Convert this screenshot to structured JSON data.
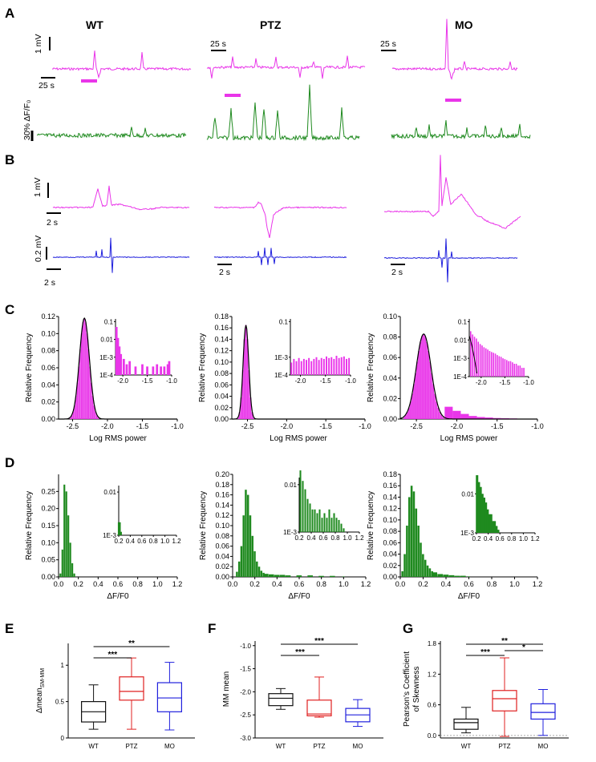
{
  "figure": {
    "panel_letters": [
      "A",
      "B",
      "C",
      "D",
      "E",
      "F",
      "G"
    ],
    "conditions": [
      "WT",
      "PTZ",
      "MO"
    ],
    "colors": {
      "ephys": "#e935e9",
      "calcium": "#1f8a1f",
      "filtered": "#2020dd",
      "wt_box": "#111111",
      "ptz_box": "#e02020",
      "mo_box": "#2020dd"
    },
    "panel_A": {
      "voltage_scale": "1 mV",
      "time_scale": "25 s",
      "calcium_scale": "30% ΔF/F₀"
    },
    "panel_B": {
      "voltage_scale": "1 mV",
      "time_scale": "2 s",
      "filtered_scale": "0.2 mV"
    }
  },
  "chart_data": [
    {
      "panel": "C",
      "condition": "WT",
      "type": "bar",
      "xlabel": "Log RMS power",
      "ylabel": "Relative Frequency",
      "xlim": [
        -2.7,
        -1.0
      ],
      "ylim": [
        0,
        0.12
      ],
      "xticks": [
        "-2.5",
        "-2.0",
        "-1.5",
        "-1.0"
      ],
      "yticks": [
        "0.00",
        "0.02",
        "0.04",
        "0.06",
        "0.08",
        "0.10",
        "0.12"
      ],
      "fit_peak": -2.33,
      "fit_sd": 0.07,
      "fit_height": 0.118,
      "tail": [],
      "inset": {
        "type": "bar",
        "scale": "log",
        "yticks": [
          "1E-4",
          "1E-3",
          "0.01",
          "0.1"
        ],
        "xticks": [
          "-2.0",
          "-1.5",
          "-1.0"
        ],
        "xlim": [
          -2.15,
          -1.0
        ],
        "x": [
          -2.13,
          -2.1,
          -2.07,
          -2.04,
          -1.98,
          -1.92,
          -1.86,
          -1.74,
          -1.6,
          -1.5,
          -1.38,
          -1.3,
          -1.22,
          -1.15,
          -1.08,
          -1.05
        ],
        "y": [
          0.05,
          0.012,
          0.004,
          0.0015,
          0.0008,
          0.0004,
          0.0006,
          0.0003,
          0.0004,
          0.0003,
          0.0003,
          0.0004,
          0.0003,
          0.0003,
          0.0004,
          0.0006
        ]
      }
    },
    {
      "panel": "C",
      "condition": "PTZ",
      "type": "bar",
      "xlabel": "Log RMS power",
      "ylabel": "Relative Frequency",
      "xlim": [
        -2.7,
        -1.0
      ],
      "ylim": [
        0,
        0.18
      ],
      "xticks": [
        "-2.5",
        "-2.0",
        "-1.5",
        "-1.0"
      ],
      "yticks": [
        "0.00",
        "0.02",
        "0.04",
        "0.06",
        "0.08",
        "0.10",
        "0.12",
        "0.14",
        "0.16",
        "0.18"
      ],
      "fit_peak": -2.52,
      "fit_sd": 0.035,
      "fit_height": 0.165,
      "tail": [],
      "inset": {
        "type": "bar",
        "scale": "log",
        "yticks": [
          "1E-4",
          "1E-3",
          "0.1"
        ],
        "xticks": [
          "-2.0",
          "-1.5",
          "-1.0"
        ],
        "xlim": [
          -2.2,
          -1.0
        ],
        "x": [
          -2.18,
          -2.13,
          -2.08,
          -2.03,
          -1.98,
          -1.93,
          -1.88,
          -1.83,
          -1.78,
          -1.73,
          -1.68,
          -1.63,
          -1.58,
          -1.53,
          -1.48,
          -1.43,
          -1.38,
          -1.33,
          -1.28,
          -1.23,
          -1.18,
          -1.13,
          -1.08,
          -1.03
        ],
        "y": [
          0.0005,
          0.0008,
          0.0006,
          0.0009,
          0.0006,
          0.0008,
          0.0007,
          0.0009,
          0.0006,
          0.0008,
          0.001,
          0.0007,
          0.0009,
          0.0008,
          0.0011,
          0.0009,
          0.001,
          0.0008,
          0.0012,
          0.0009,
          0.001,
          0.0011,
          0.0008,
          0.0009
        ]
      }
    },
    {
      "panel": "C",
      "condition": "MO",
      "type": "bar",
      "xlabel": "Log RMS power",
      "ylabel": "Relative Frequency",
      "xlim": [
        -2.7,
        -1.0
      ],
      "ylim": [
        0,
        0.1
      ],
      "xticks": [
        "-2.5",
        "-2.0",
        "-1.5",
        "-1.0"
      ],
      "yticks": [
        "0.00",
        "0.02",
        "0.04",
        "0.06",
        "0.08",
        "0.10"
      ],
      "fit_peak": -2.41,
      "fit_sd": 0.09,
      "fit_height": 0.083,
      "tail": [
        [
          -2.1,
          0.012
        ],
        [
          -2.0,
          0.008
        ],
        [
          -1.9,
          0.005
        ],
        [
          -1.8,
          0.003
        ],
        [
          -1.7,
          0.002
        ],
        [
          -1.6,
          0.0015
        ],
        [
          -1.5,
          0.001
        ],
        [
          -1.4,
          0.0008
        ],
        [
          -1.3,
          0.0006
        ]
      ],
      "inset": {
        "type": "bar",
        "scale": "log",
        "yticks": [
          "1E-4",
          "1E-3",
          "0.01",
          "0.1"
        ],
        "xticks": [
          "-2.0",
          "-1.5",
          "-1.0"
        ],
        "xlim": [
          -2.25,
          -1.0
        ],
        "x": [
          -2.22,
          -2.18,
          -2.14,
          -2.1,
          -2.06,
          -2.02,
          -1.98,
          -1.94,
          -1.9,
          -1.86,
          -1.82,
          -1.78,
          -1.74,
          -1.7,
          -1.66,
          -1.62,
          -1.58,
          -1.54,
          -1.5,
          -1.46,
          -1.42,
          -1.38,
          -1.34,
          -1.3,
          -1.26,
          -1.22,
          -1.18,
          -1.14,
          -1.1
        ],
        "y": [
          0.03,
          0.02,
          0.015,
          0.012,
          0.008,
          0.006,
          0.005,
          0.004,
          0.0035,
          0.003,
          0.0025,
          0.0022,
          0.002,
          0.0018,
          0.0015,
          0.0013,
          0.0012,
          0.001,
          0.0009,
          0.0008,
          0.0007,
          0.0007,
          0.0006,
          0.0005,
          0.0005,
          0.0004,
          0.0004,
          0.0003,
          0.0003
        ]
      }
    },
    {
      "panel": "D",
      "condition": "WT",
      "type": "bar",
      "xlabel": "ΔF/F0",
      "ylabel": "Relative Frequency",
      "xlim": [
        0,
        1.2
      ],
      "ylim": [
        0,
        0.3
      ],
      "xticks": [
        "0.0",
        "0.2",
        "0.4",
        "0.6",
        "0.8",
        "1.0",
        "1.2"
      ],
      "yticks": [
        "0.00",
        "0.05",
        "0.10",
        "0.15",
        "0.20",
        "0.25"
      ],
      "bins_x": [
        0.02,
        0.04,
        0.06,
        0.08,
        0.1,
        0.12,
        0.14,
        0.16
      ],
      "bins_y": [
        0.01,
        0.08,
        0.27,
        0.25,
        0.18,
        0.1,
        0.04,
        0.01
      ],
      "inset": {
        "type": "bar",
        "scale": "log",
        "yticks": [
          "1E-3",
          "0.01"
        ],
        "xticks": [
          "0.2",
          "0.4",
          "0.6",
          "0.8",
          "1.0",
          "1.2"
        ],
        "xlim": [
          0.2,
          1.2
        ],
        "x": [
          0.21,
          0.23,
          0.25
        ],
        "y": [
          0.002,
          0.0012,
          0.0007
        ]
      }
    },
    {
      "panel": "D",
      "condition": "PTZ",
      "type": "bar",
      "xlabel": "ΔF/F0",
      "ylabel": "Relative Frequency",
      "xlim": [
        0,
        1.2
      ],
      "ylim": [
        0,
        0.2
      ],
      "xticks": [
        "0.0",
        "0.2",
        "0.4",
        "0.6",
        "0.8",
        "1.0",
        "1.2"
      ],
      "yticks": [
        "0.00",
        "0.02",
        "0.04",
        "0.06",
        "0.08",
        "0.10",
        "0.12",
        "0.14",
        "0.16",
        "0.18",
        "0.20"
      ],
      "bins_x": [
        0.04,
        0.06,
        0.08,
        0.1,
        0.12,
        0.14,
        0.16,
        0.18,
        0.2,
        0.22,
        0.24,
        0.26,
        0.28,
        0.3,
        0.35,
        0.4,
        0.45,
        0.5,
        0.6,
        0.7,
        0.8,
        0.9,
        1.0
      ],
      "bins_y": [
        0.01,
        0.03,
        0.06,
        0.12,
        0.17,
        0.16,
        0.12,
        0.08,
        0.05,
        0.03,
        0.02,
        0.012,
        0.008,
        0.006,
        0.005,
        0.004,
        0.004,
        0.003,
        0.003,
        0.003,
        0.002,
        0.002,
        0.001
      ],
      "inset": {
        "type": "bar",
        "scale": "log",
        "yticks": [
          "1E-3",
          "0.01"
        ],
        "xticks": [
          "0.2",
          "0.4",
          "0.6",
          "0.8",
          "1.0",
          "1.2"
        ],
        "xlim": [
          0.2,
          1.2
        ],
        "x": [
          0.22,
          0.26,
          0.3,
          0.34,
          0.38,
          0.42,
          0.46,
          0.5,
          0.54,
          0.58,
          0.62,
          0.66,
          0.7,
          0.74,
          0.78,
          0.82,
          0.86,
          0.9,
          0.94,
          0.98,
          1.02,
          1.06,
          1.1
        ],
        "y": [
          0.02,
          0.012,
          0.008,
          0.005,
          0.004,
          0.003,
          0.003,
          0.0025,
          0.003,
          0.002,
          0.0025,
          0.002,
          0.003,
          0.002,
          0.0025,
          0.002,
          0.0018,
          0.0015,
          0.0012,
          0.001,
          0.0008,
          0.0007,
          0.0006
        ]
      }
    },
    {
      "panel": "D",
      "condition": "MO",
      "type": "bar",
      "xlabel": "ΔF/F0",
      "ylabel": "Relative Frequency",
      "xlim": [
        0,
        1.2
      ],
      "ylim": [
        0,
        0.18
      ],
      "xticks": [
        "0.0",
        "0.2",
        "0.4",
        "0.6",
        "0.8",
        "1.0",
        "1.2"
      ],
      "yticks": [
        "0.00",
        "0.02",
        "0.04",
        "0.06",
        "0.08",
        "0.10",
        "0.12",
        "0.14",
        "0.16",
        "0.18"
      ],
      "bins_x": [
        0.02,
        0.04,
        0.06,
        0.08,
        0.1,
        0.12,
        0.14,
        0.16,
        0.18,
        0.2,
        0.22,
        0.24,
        0.26,
        0.28,
        0.3,
        0.35,
        0.4,
        0.45,
        0.5,
        0.55,
        0.6
      ],
      "bins_y": [
        0.01,
        0.04,
        0.09,
        0.14,
        0.16,
        0.15,
        0.12,
        0.09,
        0.06,
        0.04,
        0.03,
        0.02,
        0.015,
        0.01,
        0.008,
        0.005,
        0.004,
        0.003,
        0.002,
        0.002,
        0.001
      ],
      "inset": {
        "type": "bar",
        "scale": "log",
        "yticks": [
          "1E-3",
          "0.01"
        ],
        "xticks": [
          "0.2",
          "0.4",
          "0.6",
          "0.8",
          "1.0",
          "1.2"
        ],
        "xlim": [
          0.2,
          1.2
        ],
        "x": [
          0.21,
          0.24,
          0.27,
          0.3,
          0.33,
          0.36,
          0.39,
          0.42,
          0.45,
          0.48,
          0.51,
          0.54,
          0.57,
          0.6,
          0.63
        ],
        "y": [
          0.03,
          0.02,
          0.015,
          0.01,
          0.008,
          0.006,
          0.004,
          0.003,
          0.003,
          0.002,
          0.002,
          0.0015,
          0.0012,
          0.001,
          0.0008
        ]
      }
    },
    {
      "panel": "E",
      "type": "box",
      "ylabel": "Δmean",
      "ylabel_sub": "SM-MM",
      "categories": [
        "WT",
        "PTZ",
        "MO"
      ],
      "ylim": [
        0,
        1.3
      ],
      "yticks": [
        "0",
        "0.5",
        "1"
      ],
      "series": [
        {
          "name": "WT",
          "min": 0.12,
          "q1": 0.22,
          "median": 0.36,
          "q3": 0.5,
          "max": 0.73
        },
        {
          "name": "PTZ",
          "min": 0.12,
          "q1": 0.52,
          "median": 0.64,
          "q3": 0.84,
          "max": 1.1
        },
        {
          "name": "MO",
          "min": 0.11,
          "q1": 0.36,
          "median": 0.55,
          "q3": 0.76,
          "max": 1.04
        }
      ],
      "significance": [
        {
          "from": "WT",
          "to": "PTZ",
          "label": "***"
        },
        {
          "from": "WT",
          "to": "MO",
          "label": "**"
        }
      ]
    },
    {
      "panel": "F",
      "type": "box",
      "ylabel": "MM mean",
      "categories": [
        "WT",
        "PTZ",
        "MO"
      ],
      "ylim": [
        -3.0,
        -0.9
      ],
      "yticks": [
        "-3.0",
        "-2.5",
        "-2.0",
        "-1.5",
        "-1.0"
      ],
      "series": [
        {
          "name": "WT",
          "min": -2.38,
          "q1": -2.3,
          "median": -2.14,
          "q3": -2.04,
          "max": -1.93
        },
        {
          "name": "PTZ",
          "min": -2.55,
          "q1": -2.52,
          "median": -2.48,
          "q3": -2.18,
          "max": -1.68
        },
        {
          "name": "MO",
          "min": -2.75,
          "q1": -2.65,
          "median": -2.5,
          "q3": -2.36,
          "max": -2.17
        }
      ],
      "significance": [
        {
          "from": "WT",
          "to": "PTZ",
          "label": "***"
        },
        {
          "from": "WT",
          "to": "MO",
          "label": "***"
        }
      ]
    },
    {
      "panel": "G",
      "type": "box",
      "ylabel": "Pearson's Coefficient",
      "ylabel2": "of Skewness",
      "categories": [
        "WT",
        "PTZ",
        "MO"
      ],
      "ylim": [
        -0.05,
        1.85
      ],
      "yticks": [
        "0.0",
        "0.6",
        "1.2",
        "1.8"
      ],
      "series": [
        {
          "name": "WT",
          "min": 0.05,
          "q1": 0.12,
          "median": 0.25,
          "q3": 0.32,
          "max": 0.55
        },
        {
          "name": "PTZ",
          "min": -0.02,
          "q1": 0.48,
          "median": 0.72,
          "q3": 0.88,
          "max": 1.52
        },
        {
          "name": "MO",
          "min": 0.0,
          "q1": 0.32,
          "median": 0.45,
          "q3": 0.62,
          "max": 0.9
        }
      ],
      "significance": [
        {
          "from": "WT",
          "to": "PTZ",
          "label": "***"
        },
        {
          "from": "WT",
          "to": "MO",
          "label": "**"
        },
        {
          "from": "PTZ",
          "to": "MO",
          "label": "*"
        }
      ]
    }
  ]
}
